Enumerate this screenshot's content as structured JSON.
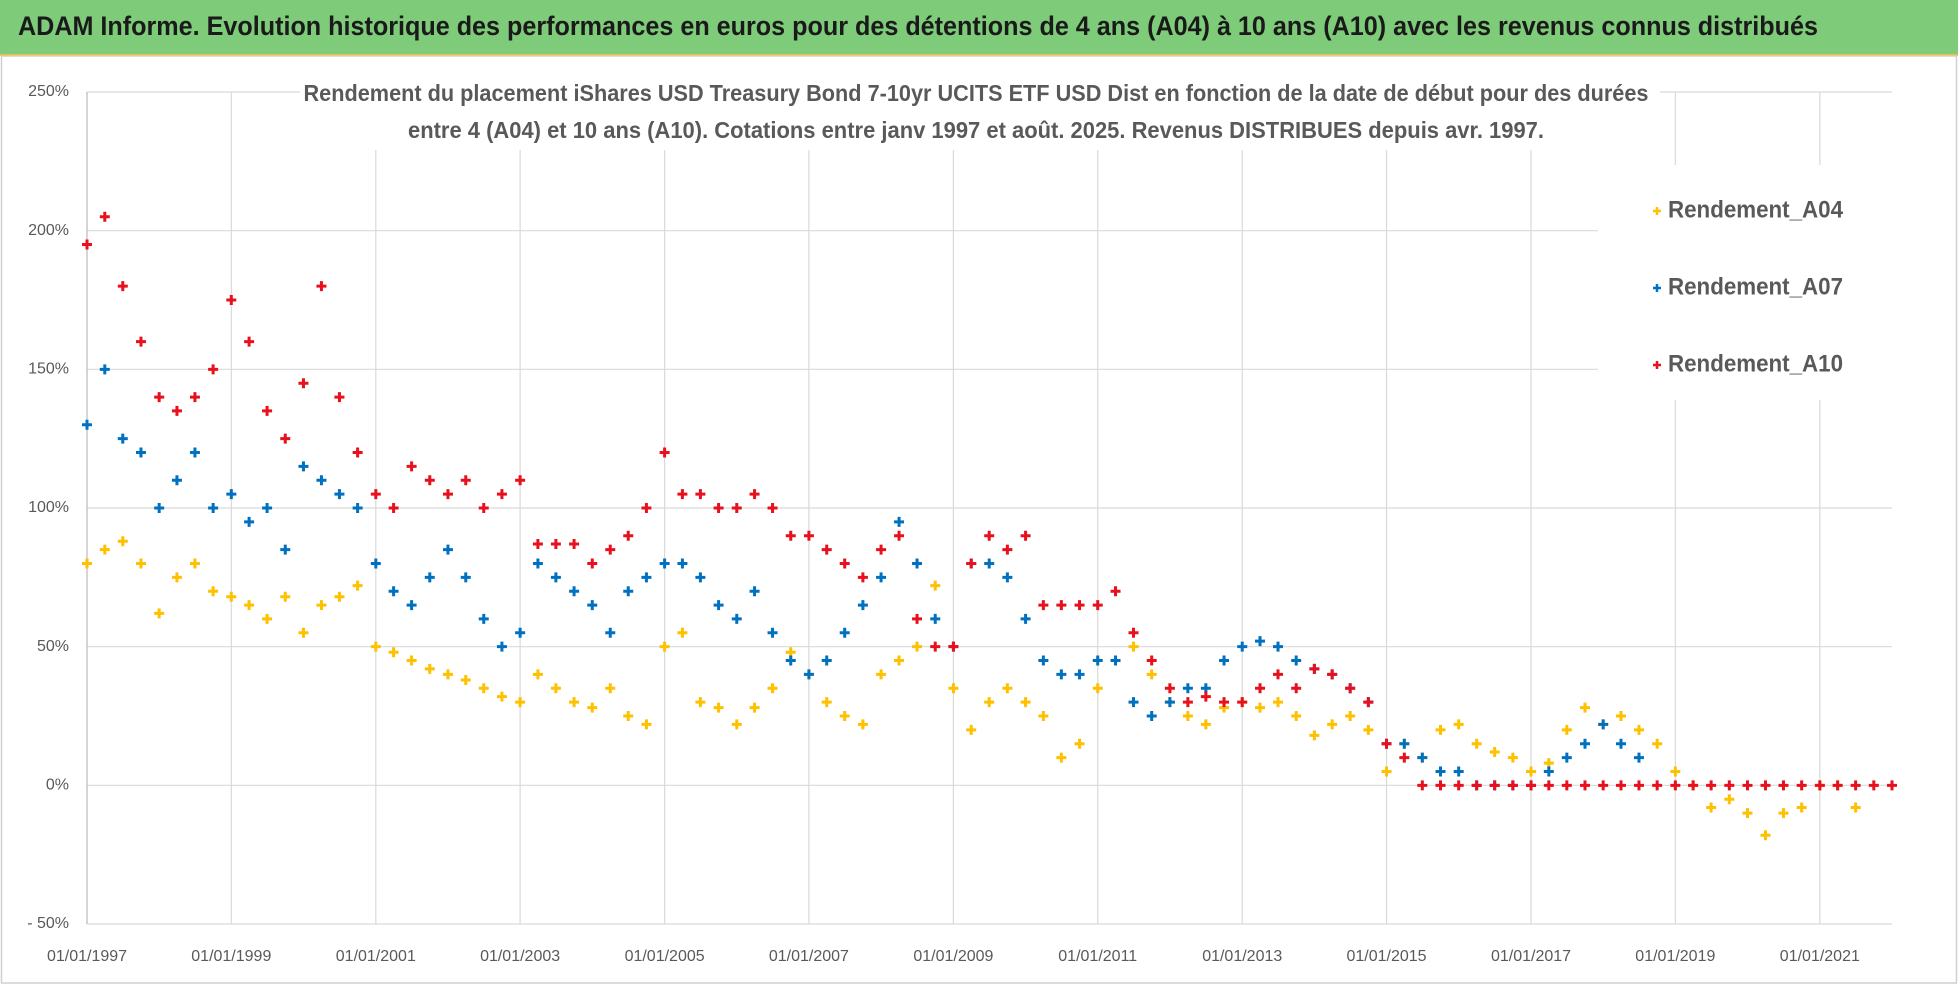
{
  "header": {
    "title": "ADAM Informe. Evolution historique des performances en euros pour des détentions de 4 ans (A04) à 10 ans (A10) avec les revenus connus distribués"
  },
  "chart_data": {
    "type": "scatter",
    "title": [
      "Rendement du placement iShares USD Treasury Bond 7-10yr UCITS ETF USD Dist en fonction de la date de début pour des durées",
      "entre 4 (A04) et 10 ans (A10).  Cotations entre janv 1997 et août. 2025. Revenus DISTRIBUES depuis avr. 1997."
    ],
    "xlim": [
      "1997-01-01",
      "2022-01-01"
    ],
    "xticks": [
      {
        "value": "1997-01-01",
        "label": "01/01/1997"
      },
      {
        "value": "1999-01-01",
        "label": "01/01/1999"
      },
      {
        "value": "2001-01-01",
        "label": "01/01/2001"
      },
      {
        "value": "2003-01-01",
        "label": "01/01/2003"
      },
      {
        "value": "2005-01-01",
        "label": "01/01/2005"
      },
      {
        "value": "2007-01-01",
        "label": "01/01/2007"
      },
      {
        "value": "2009-01-01",
        "label": "01/01/2009"
      },
      {
        "value": "2011-01-01",
        "label": "01/01/2011"
      },
      {
        "value": "2013-01-01",
        "label": "01/01/2013"
      },
      {
        "value": "2015-01-01",
        "label": "01/01/2015"
      },
      {
        "value": "2017-01-01",
        "label": "01/01/2017"
      },
      {
        "value": "2019-01-01",
        "label": "01/01/2019"
      },
      {
        "value": "2021-01-01",
        "label": "01/01/2021"
      }
    ],
    "ylim": [
      -50,
      250
    ],
    "yticks": [
      {
        "value": -50,
        "label": "- 50%"
      },
      {
        "value": 0,
        "label": "0%"
      },
      {
        "value": 50,
        "label": "50%"
      },
      {
        "value": 100,
        "label": "100%"
      },
      {
        "value": 150,
        "label": "150%"
      },
      {
        "value": 200,
        "label": "200%"
      },
      {
        "value": 250,
        "label": "250%"
      }
    ],
    "grid": true,
    "legend": "right",
    "series": [
      {
        "name": "Rendement_A04",
        "color": "#ffc000",
        "x": [
          "1997-01-01",
          "1997-04-01",
          "1997-07-01",
          "1997-10-01",
          "1998-01-01",
          "1998-04-01",
          "1998-07-01",
          "1998-10-01",
          "1999-01-01",
          "1999-04-01",
          "1999-07-01",
          "1999-10-01",
          "2000-01-01",
          "2000-04-01",
          "2000-07-01",
          "2000-10-01",
          "2001-01-01",
          "2001-04-01",
          "2001-07-01",
          "2001-10-01",
          "2002-01-01",
          "2002-04-01",
          "2002-07-01",
          "2002-10-01",
          "2003-01-01",
          "2003-04-01",
          "2003-07-01",
          "2003-10-01",
          "2004-01-01",
          "2004-04-01",
          "2004-07-01",
          "2004-10-01",
          "2005-01-01",
          "2005-04-01",
          "2005-07-01",
          "2005-10-01",
          "2006-01-01",
          "2006-04-01",
          "2006-07-01",
          "2006-10-01",
          "2007-01-01",
          "2007-04-01",
          "2007-07-01",
          "2007-10-01",
          "2008-01-01",
          "2008-04-01",
          "2008-07-01",
          "2008-10-01",
          "2009-01-01",
          "2009-04-01",
          "2009-07-01",
          "2009-10-01",
          "2010-01-01",
          "2010-04-01",
          "2010-07-01",
          "2010-10-01",
          "2011-01-01",
          "2011-04-01",
          "2011-07-01",
          "2011-10-01",
          "2012-01-01",
          "2012-04-01",
          "2012-07-01",
          "2012-10-01",
          "2013-01-01",
          "2013-04-01",
          "2013-07-01",
          "2013-10-01",
          "2014-01-01",
          "2014-04-01",
          "2014-07-01",
          "2014-10-01",
          "2015-01-01",
          "2015-04-01",
          "2015-07-01",
          "2015-10-01",
          "2016-01-01",
          "2016-04-01",
          "2016-07-01",
          "2016-10-01",
          "2017-01-01",
          "2017-04-01",
          "2017-07-01",
          "2017-10-01",
          "2018-01-01",
          "2018-04-01",
          "2018-07-01",
          "2018-10-01",
          "2019-01-01",
          "2019-04-01",
          "2019-07-01",
          "2019-10-01",
          "2020-01-01",
          "2020-04-01",
          "2020-07-01",
          "2020-10-01",
          "2021-01-01",
          "2021-04-01",
          "2021-07-01"
        ],
        "values": [
          80,
          85,
          88,
          80,
          62,
          75,
          80,
          70,
          68,
          65,
          60,
          68,
          55,
          65,
          68,
          72,
          50,
          48,
          45,
          42,
          40,
          38,
          35,
          32,
          30,
          40,
          35,
          30,
          28,
          35,
          25,
          22,
          50,
          55,
          30,
          28,
          22,
          28,
          35,
          48,
          40,
          30,
          25,
          22,
          40,
          45,
          50,
          72,
          35,
          20,
          30,
          35,
          30,
          25,
          10,
          15,
          35,
          45,
          50,
          40,
          30,
          25,
          22,
          28,
          30,
          28,
          30,
          25,
          18,
          22,
          25,
          20,
          5,
          15,
          10,
          20,
          22,
          15,
          12,
          10,
          5,
          8,
          20,
          28,
          22,
          25,
          20,
          15,
          5,
          0,
          -8,
          -5,
          -10,
          -18,
          -10,
          -8,
          0,
          0,
          -8
        ]
      },
      {
        "name": "Rendement_A07",
        "color": "#0070c0",
        "x": [
          "1997-01-01",
          "1997-04-01",
          "1997-07-01",
          "1997-10-01",
          "1998-01-01",
          "1998-04-01",
          "1998-07-01",
          "1998-10-01",
          "1999-01-01",
          "1999-04-01",
          "1999-07-01",
          "1999-10-01",
          "2000-01-01",
          "2000-04-01",
          "2000-07-01",
          "2000-10-01",
          "2001-01-01",
          "2001-04-01",
          "2001-07-01",
          "2001-10-01",
          "2002-01-01",
          "2002-04-01",
          "2002-07-01",
          "2002-10-01",
          "2003-01-01",
          "2003-04-01",
          "2003-07-01",
          "2003-10-01",
          "2004-01-01",
          "2004-04-01",
          "2004-07-01",
          "2004-10-01",
          "2005-01-01",
          "2005-04-01",
          "2005-07-01",
          "2005-10-01",
          "2006-01-01",
          "2006-04-01",
          "2006-07-01",
          "2006-10-01",
          "2007-01-01",
          "2007-04-01",
          "2007-07-01",
          "2007-10-01",
          "2008-01-01",
          "2008-04-01",
          "2008-07-01",
          "2008-10-01",
          "2009-01-01",
          "2009-04-01",
          "2009-07-01",
          "2009-10-01",
          "2010-01-01",
          "2010-04-01",
          "2010-07-01",
          "2010-10-01",
          "2011-01-01",
          "2011-04-01",
          "2011-07-01",
          "2011-10-01",
          "2012-01-01",
          "2012-04-01",
          "2012-07-01",
          "2012-10-01",
          "2013-01-01",
          "2013-04-01",
          "2013-07-01",
          "2013-10-01",
          "2014-01-01",
          "2014-04-01",
          "2014-07-01",
          "2014-10-01",
          "2015-01-01",
          "2015-04-01",
          "2015-07-01",
          "2015-10-01",
          "2016-01-01",
          "2016-04-01",
          "2016-07-01",
          "2016-10-01",
          "2017-01-01",
          "2017-04-01",
          "2017-07-01",
          "2017-10-01",
          "2018-01-01",
          "2018-04-01",
          "2018-07-01"
        ],
        "values": [
          130,
          150,
          125,
          120,
          100,
          110,
          120,
          100,
          105,
          95,
          100,
          85,
          115,
          110,
          105,
          100,
          80,
          70,
          65,
          75,
          85,
          75,
          60,
          50,
          55,
          80,
          75,
          70,
          65,
          55,
          70,
          75,
          80,
          80,
          75,
          65,
          60,
          70,
          55,
          45,
          40,
          45,
          55,
          65,
          75,
          95,
          80,
          60,
          50,
          80,
          80,
          75,
          60,
          45,
          40,
          40,
          45,
          45,
          30,
          25,
          30,
          35,
          35,
          45,
          50,
          52,
          50,
          45,
          42,
          40,
          35,
          30,
          15,
          15,
          10,
          5,
          5,
          0,
          0,
          0,
          0,
          5,
          10,
          15,
          22,
          15,
          10
        ]
      },
      {
        "name": "Rendement_A10",
        "color": "#e8101c",
        "x": [
          "1997-01-01",
          "1997-04-01",
          "1997-07-01",
          "1997-10-01",
          "1998-01-01",
          "1998-04-01",
          "1998-07-01",
          "1998-10-01",
          "1999-01-01",
          "1999-04-01",
          "1999-07-01",
          "1999-10-01",
          "2000-01-01",
          "2000-04-01",
          "2000-07-01",
          "2000-10-01",
          "2001-01-01",
          "2001-04-01",
          "2001-07-01",
          "2001-10-01",
          "2002-01-01",
          "2002-04-01",
          "2002-07-01",
          "2002-10-01",
          "2003-01-01",
          "2003-04-01",
          "2003-07-01",
          "2003-10-01",
          "2004-01-01",
          "2004-04-01",
          "2004-07-01",
          "2004-10-01",
          "2005-01-01",
          "2005-04-01",
          "2005-07-01",
          "2005-10-01",
          "2006-01-01",
          "2006-04-01",
          "2006-07-01",
          "2006-10-01",
          "2007-01-01",
          "2007-04-01",
          "2007-07-01",
          "2007-10-01",
          "2008-01-01",
          "2008-04-01",
          "2008-07-01",
          "2008-10-01",
          "2009-01-01",
          "2009-04-01",
          "2009-07-01",
          "2009-10-01",
          "2010-01-01",
          "2010-04-01",
          "2010-07-01",
          "2010-10-01",
          "2011-01-01",
          "2011-04-01",
          "2011-07-01",
          "2011-10-01",
          "2012-01-01",
          "2012-04-01",
          "2012-07-01",
          "2012-10-01",
          "2013-01-01",
          "2013-04-01",
          "2013-07-01",
          "2013-10-01",
          "2014-01-01",
          "2014-04-01",
          "2014-07-01",
          "2014-10-01",
          "2015-01-01",
          "2015-04-01",
          "2015-07-01",
          "2015-10-01",
          "2016-01-01",
          "2016-04-01",
          "2016-07-01",
          "2016-10-01",
          "2017-01-01",
          "2017-04-01",
          "2017-07-01",
          "2017-10-01",
          "2018-01-01",
          "2018-04-01",
          "2018-07-01",
          "2018-10-01",
          "2019-01-01",
          "2019-04-01",
          "2019-07-01",
          "2019-10-01",
          "2020-01-01",
          "2020-04-01",
          "2020-07-01",
          "2020-10-01",
          "2021-01-01",
          "2021-04-01",
          "2021-07-01",
          "2021-10-01",
          "2022-01-01"
        ],
        "values": [
          195,
          205,
          180,
          160,
          140,
          135,
          140,
          150,
          175,
          160,
          135,
          125,
          145,
          180,
          140,
          120,
          105,
          100,
          115,
          110,
          105,
          110,
          100,
          105,
          110,
          87,
          87,
          87,
          80,
          85,
          90,
          100,
          120,
          105,
          105,
          100,
          100,
          105,
          100,
          90,
          90,
          85,
          80,
          75,
          85,
          90,
          60,
          50,
          50,
          80,
          90,
          85,
          90,
          65,
          65,
          65,
          65,
          70,
          55,
          45,
          35,
          30,
          32,
          30,
          30,
          35,
          40,
          35,
          42,
          40,
          35,
          30,
          15,
          10,
          0,
          0,
          0,
          0,
          0,
          0,
          0,
          0,
          0,
          0,
          0,
          0,
          0,
          0,
          0,
          0,
          0,
          0,
          0,
          0,
          0,
          0,
          0,
          0,
          0,
          0,
          0
        ]
      }
    ]
  }
}
